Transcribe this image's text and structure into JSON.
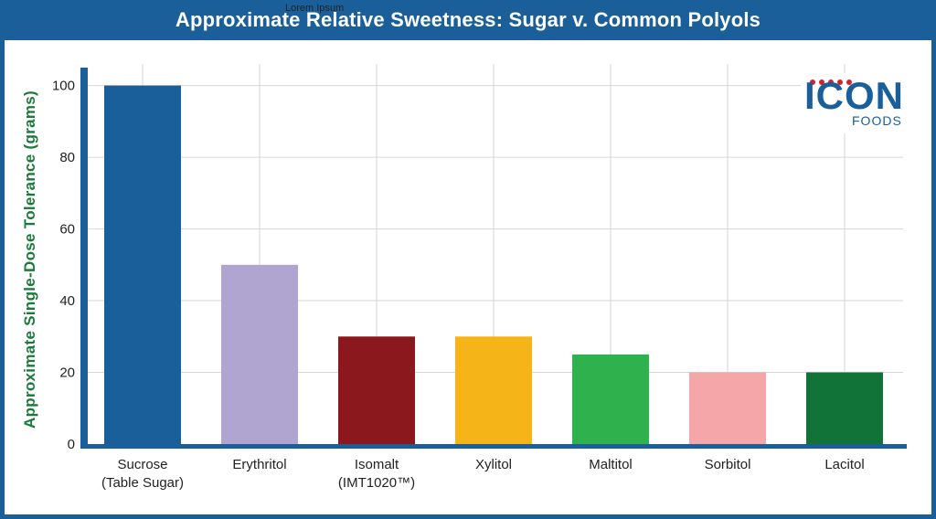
{
  "header": {
    "title": "Approximate Relative Sweetness: Sugar v. Common Polyols",
    "placeholder": "Lorem Ipsum"
  },
  "logo": {
    "word": "ICON",
    "sub": "FOODS"
  },
  "colors": {
    "brand": "#1a5f99",
    "ylabel": "#1b7a3a",
    "logo_dots": "#d1232a"
  },
  "chart_data": {
    "type": "bar",
    "title": "Approximate Relative Sweetness: Sugar v. Common Polyols",
    "xlabel": "",
    "ylabel": "Approximate Single-Dose Tolerance (grams)",
    "ylim": [
      0,
      105
    ],
    "yticks": [
      0,
      20,
      40,
      60,
      80,
      100
    ],
    "grid": true,
    "categories": [
      [
        "Sucrose",
        "(Table Sugar)"
      ],
      [
        "Erythritol"
      ],
      [
        "Isomalt",
        "(IMT1020™)"
      ],
      [
        "Xylitol"
      ],
      [
        "Maltitol"
      ],
      [
        "Sorbitol"
      ],
      [
        "Lacitol"
      ]
    ],
    "values": [
      100,
      50,
      30,
      30,
      25,
      20,
      20
    ],
    "colors": [
      "#1a5f99",
      "#b0a4d1",
      "#8a181c",
      "#f5b518",
      "#2fb24d",
      "#f4a6a8",
      "#127338"
    ]
  }
}
